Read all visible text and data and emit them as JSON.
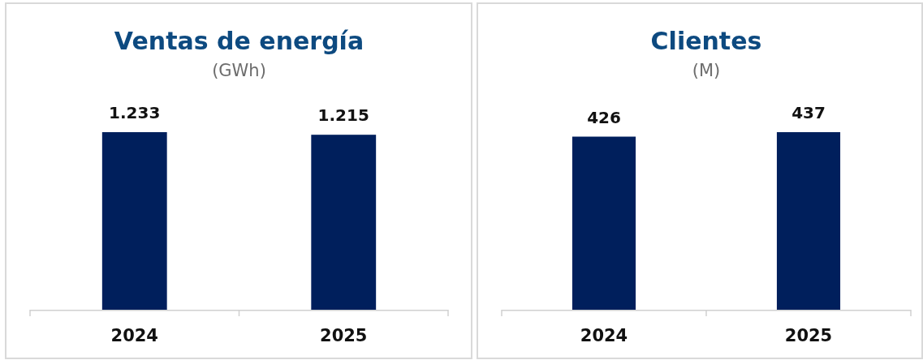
{
  "chart_data": [
    {
      "type": "bar",
      "title": "Ventas de energía",
      "subtitle": "(GWh)",
      "categories": [
        "2024",
        "2025"
      ],
      "values": [
        1233,
        1215
      ],
      "color": "#001f5c",
      "value_labels": [
        "1.233",
        "1.215"
      ]
    },
    {
      "type": "bar",
      "title": "Clientes",
      "subtitle": "(M)",
      "categories": [
        "2024",
        "2025"
      ],
      "values": [
        426,
        437
      ],
      "color": "#001f5c",
      "data_labels": true
    }
  ]
}
